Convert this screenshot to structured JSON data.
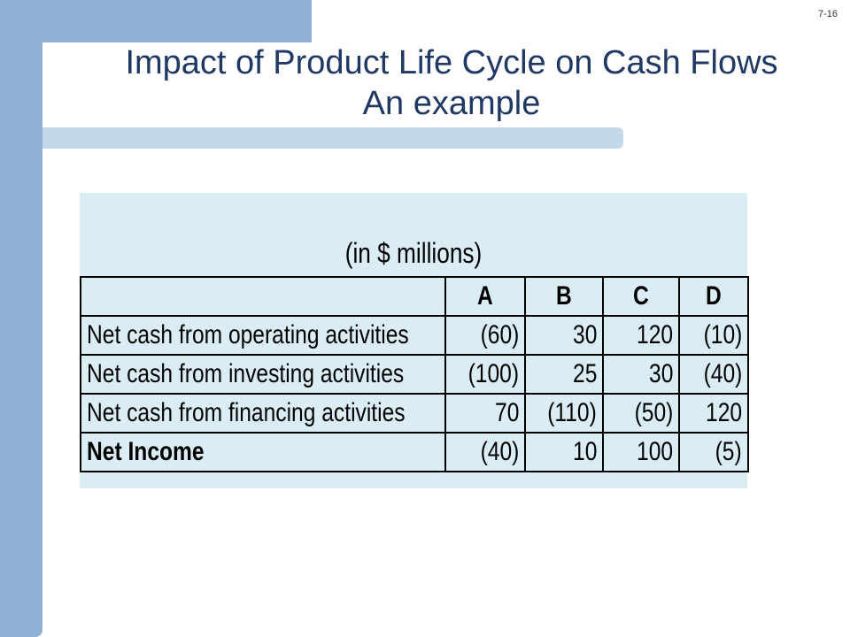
{
  "slide": {
    "number": "7-16",
    "title_line1": "Impact of Product Life Cycle on Cash Flows",
    "title_line2": "An example"
  },
  "table": {
    "caption": "(in $ millions)",
    "columns": [
      "A",
      "B",
      "C",
      "D"
    ],
    "rows": [
      {
        "label": "Net cash  from operating activities",
        "cells": [
          "(60)",
          "30",
          "120",
          "(10)"
        ]
      },
      {
        "label": "Net cash  from investing activities",
        "cells": [
          "(100)",
          "25",
          "30",
          "(40)"
        ]
      },
      {
        "label": "Net cash  from financing activities",
        "cells": [
          "70",
          "(110)",
          "(50)",
          "120"
        ]
      },
      {
        "label": "Net Income",
        "cells": [
          "(40)",
          "10",
          "100",
          "(5)"
        ]
      }
    ]
  },
  "colors": {
    "accent_bar": "#8eb0d3",
    "light_bar": "#c5d8e8",
    "panel": "#dbedf4",
    "negative": "#ff0000",
    "title": "#1f3864"
  }
}
